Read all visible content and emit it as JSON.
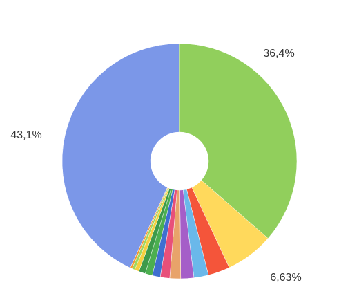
{
  "chart_data": {
    "type": "pie",
    "values": [
      36.4,
      6.63,
      3.0,
      2.0,
      1.8,
      1.5,
      1.3,
      1.1,
      1.0,
      0.9,
      0.6,
      0.4,
      0.27,
      43.1
    ],
    "value_labels": [
      "36,4%",
      "6,63%",
      null,
      null,
      null,
      null,
      null,
      null,
      null,
      null,
      null,
      null,
      null,
      "43,1%"
    ],
    "colors": [
      "#91cf5c",
      "#ffd95c",
      "#f4553a",
      "#6ab8ea",
      "#a55ec8",
      "#e8a36a",
      "#e8507a",
      "#3f6fd0",
      "#4caf50",
      "#3d9a4a",
      "#f5d040",
      "#9fd860",
      "#f59a30",
      "#7b97e8"
    ]
  }
}
